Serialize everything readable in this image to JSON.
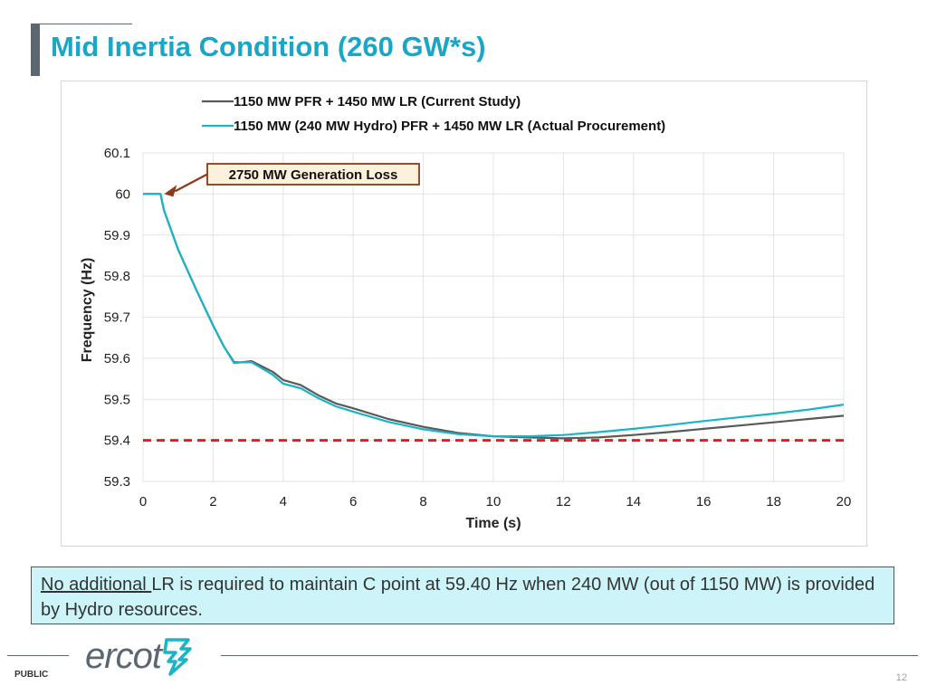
{
  "page": {
    "title": "Mid Inertia Condition (260 GW*s)",
    "note_underlined": "No additional ",
    "note_rest": "LR is required to maintain C point at 59.40 Hz when 240 MW (out of 1150 MW) is provided by Hydro resources.",
    "footer_label": "PUBLIC",
    "page_number": "12",
    "logo_text": "ercot"
  },
  "colors": {
    "title": "#1aa6c9",
    "current_study": "#595959",
    "actual_procurement": "#1bb3c6",
    "threshold": "#e02020",
    "annotation_border": "#8b3a1a",
    "annotation_fill": "#fdf1dc"
  },
  "chart_data": {
    "type": "line",
    "title": "",
    "xlabel": "Time (s)",
    "ylabel": "Frequency (Hz)",
    "xlim": [
      0,
      20
    ],
    "ylim": [
      59.3,
      60.1
    ],
    "xticks": [
      0,
      2,
      4,
      6,
      8,
      10,
      12,
      14,
      16,
      18,
      20
    ],
    "yticks": [
      59.3,
      59.4,
      59.5,
      59.6,
      59.7,
      59.8,
      59.9,
      60.0,
      60.1
    ],
    "ytick_labels": [
      "59.3",
      "59.4",
      "59.5",
      "59.6",
      "59.7",
      "59.8",
      "59.9",
      "60",
      "60.1"
    ],
    "grid": true,
    "legend_position": "top",
    "series": [
      {
        "name": "1150 MW PFR + 1450 MW LR (Current Study)",
        "color": "#595959",
        "points": [
          [
            0,
            60.0
          ],
          [
            0.5,
            60.0
          ],
          [
            0.6,
            59.96
          ],
          [
            1.0,
            59.865
          ],
          [
            1.5,
            59.77
          ],
          [
            2.0,
            59.68
          ],
          [
            2.3,
            59.63
          ],
          [
            2.6,
            59.59
          ],
          [
            2.8,
            59.59
          ],
          [
            3.1,
            59.593
          ],
          [
            3.4,
            59.58
          ],
          [
            3.7,
            59.567
          ],
          [
            4.0,
            59.547
          ],
          [
            4.5,
            59.535
          ],
          [
            5.0,
            59.51
          ],
          [
            5.5,
            59.49
          ],
          [
            6.0,
            59.478
          ],
          [
            7.0,
            59.452
          ],
          [
            8.0,
            59.433
          ],
          [
            9.0,
            59.418
          ],
          [
            10.0,
            59.41
          ],
          [
            11.0,
            59.407
          ],
          [
            12.0,
            59.405
          ],
          [
            13.0,
            59.407
          ],
          [
            14.0,
            59.413
          ],
          [
            15.0,
            59.42
          ],
          [
            16.0,
            59.428
          ],
          [
            17.0,
            59.436
          ],
          [
            18.0,
            59.444
          ],
          [
            19.0,
            59.452
          ],
          [
            20.0,
            59.46
          ]
        ]
      },
      {
        "name": "1150 MW (240  MW Hydro) PFR + 1450 MW LR (Actual Procurement)",
        "color": "#1bb3c6",
        "points": [
          [
            0,
            60.0
          ],
          [
            0.5,
            60.0
          ],
          [
            0.6,
            59.96
          ],
          [
            1.0,
            59.865
          ],
          [
            1.5,
            59.77
          ],
          [
            2.0,
            59.68
          ],
          [
            2.3,
            59.63
          ],
          [
            2.6,
            59.588
          ],
          [
            2.8,
            59.59
          ],
          [
            3.1,
            59.59
          ],
          [
            3.4,
            59.575
          ],
          [
            3.7,
            59.56
          ],
          [
            4.0,
            59.538
          ],
          [
            4.5,
            59.527
          ],
          [
            5.0,
            59.503
          ],
          [
            5.5,
            59.483
          ],
          [
            6.0,
            59.47
          ],
          [
            7.0,
            59.445
          ],
          [
            8.0,
            59.427
          ],
          [
            9.0,
            59.415
          ],
          [
            10.0,
            59.41
          ],
          [
            11.0,
            59.41
          ],
          [
            12.0,
            59.413
          ],
          [
            13.0,
            59.42
          ],
          [
            14.0,
            59.428
          ],
          [
            15.0,
            59.437
          ],
          [
            16.0,
            59.447
          ],
          [
            17.0,
            59.456
          ],
          [
            18.0,
            59.465
          ],
          [
            19.0,
            59.475
          ],
          [
            20.0,
            59.487
          ]
        ]
      }
    ],
    "threshold": {
      "value": 59.4,
      "color": "#e02020",
      "style": "dashed"
    },
    "annotation": {
      "text": "2750 MW Generation Loss",
      "x": 0.5,
      "y": 60.0
    }
  }
}
